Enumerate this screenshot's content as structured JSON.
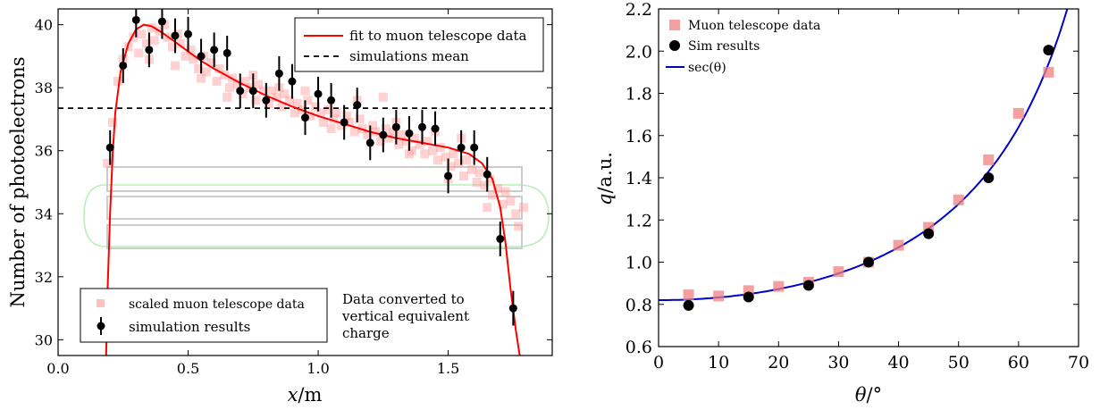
{
  "chart_data": [
    {
      "type": "scatter",
      "xlabel_var": "x",
      "xlabel_unit": "/m",
      "ylabel": "Number of photoelectrons",
      "xlim": [
        0.0,
        1.9
      ],
      "ylim": [
        29.5,
        40.5
      ],
      "xticks": [
        "0.0",
        "0.5",
        "1.0",
        "1.5"
      ],
      "xtick_values": [
        0.0,
        0.5,
        1.0,
        1.5
      ],
      "yticks": [
        "30",
        "32",
        "34",
        "36",
        "38",
        "40"
      ],
      "ytick_values": [
        30,
        32,
        34,
        36,
        38,
        40
      ],
      "grid": false,
      "legend_top": {
        "placement": "top-right",
        "entries": [
          "fit to muon telescope data",
          "simulations mean"
        ]
      },
      "legend_bottom": {
        "placement": "bottom-left",
        "entries": [
          "scaled muon telescope data",
          "simulation results"
        ]
      },
      "annotation": [
        "Data converted to",
        "vertical equivalent",
        "charge"
      ],
      "colors": {
        "fit": "#ff0000",
        "telescope": "#ff9999",
        "sim": "#000000",
        "mean": "#000000",
        "module_outline": "#c8c8c8",
        "module_glow": "#b0f0b0"
      },
      "mean": 37.35,
      "simulation": [
        {
          "x": 0.2,
          "y": 36.1,
          "err": 0.55
        },
        {
          "x": 0.25,
          "y": 38.7,
          "err": 0.55
        },
        {
          "x": 0.3,
          "y": 40.15,
          "err": 0.55
        },
        {
          "x": 0.35,
          "y": 39.2,
          "err": 0.55
        },
        {
          "x": 0.4,
          "y": 40.1,
          "err": 0.55
        },
        {
          "x": 0.45,
          "y": 39.65,
          "err": 0.55
        },
        {
          "x": 0.5,
          "y": 39.7,
          "err": 0.55
        },
        {
          "x": 0.55,
          "y": 39.0,
          "err": 0.55
        },
        {
          "x": 0.6,
          "y": 39.2,
          "err": 0.55
        },
        {
          "x": 0.65,
          "y": 39.1,
          "err": 0.55
        },
        {
          "x": 0.7,
          "y": 37.9,
          "err": 0.55
        },
        {
          "x": 0.75,
          "y": 37.9,
          "err": 0.55
        },
        {
          "x": 0.8,
          "y": 37.6,
          "err": 0.55
        },
        {
          "x": 0.85,
          "y": 38.45,
          "err": 0.55
        },
        {
          "x": 0.9,
          "y": 38.2,
          "err": 0.55
        },
        {
          "x": 0.95,
          "y": 37.05,
          "err": 0.55
        },
        {
          "x": 1.0,
          "y": 37.8,
          "err": 0.55
        },
        {
          "x": 1.05,
          "y": 37.6,
          "err": 0.55
        },
        {
          "x": 1.1,
          "y": 36.9,
          "err": 0.55
        },
        {
          "x": 1.15,
          "y": 37.45,
          "err": 0.55
        },
        {
          "x": 1.2,
          "y": 36.25,
          "err": 0.55
        },
        {
          "x": 1.25,
          "y": 36.5,
          "err": 0.55
        },
        {
          "x": 1.3,
          "y": 36.75,
          "err": 0.55
        },
        {
          "x": 1.35,
          "y": 36.55,
          "err": 0.55
        },
        {
          "x": 1.4,
          "y": 36.75,
          "err": 0.55
        },
        {
          "x": 1.45,
          "y": 36.7,
          "err": 0.55
        },
        {
          "x": 1.5,
          "y": 35.2,
          "err": 0.55
        },
        {
          "x": 1.55,
          "y": 36.1,
          "err": 0.55
        },
        {
          "x": 1.6,
          "y": 36.1,
          "err": 0.55
        },
        {
          "x": 1.65,
          "y": 35.25,
          "err": 0.55
        },
        {
          "x": 1.7,
          "y": 33.2,
          "err": 0.55
        },
        {
          "x": 1.75,
          "y": 31.0,
          "err": 0.55
        }
      ],
      "telescope": [
        [
          0.19,
          35.6
        ],
        [
          0.21,
          36.9
        ],
        [
          0.23,
          38.2
        ],
        [
          0.25,
          38.9
        ],
        [
          0.27,
          39.3
        ],
        [
          0.29,
          39.6
        ],
        [
          0.31,
          39.1
        ],
        [
          0.32,
          39.7
        ],
        [
          0.34,
          39.4
        ],
        [
          0.36,
          39.9
        ],
        [
          0.37,
          39.5
        ],
        [
          0.39,
          39.8
        ],
        [
          0.41,
          40.0
        ],
        [
          0.42,
          39.6
        ],
        [
          0.44,
          39.3
        ],
        [
          0.46,
          39.7
        ],
        [
          0.47,
          39.4
        ],
        [
          0.49,
          39.0
        ],
        [
          0.51,
          39.2
        ],
        [
          0.52,
          38.9
        ],
        [
          0.54,
          38.6
        ],
        [
          0.56,
          39.0
        ],
        [
          0.57,
          38.5
        ],
        [
          0.59,
          38.8
        ],
        [
          0.61,
          38.2
        ],
        [
          0.62,
          38.6
        ],
        [
          0.64,
          38.4
        ],
        [
          0.66,
          38.0
        ],
        [
          0.67,
          38.3
        ],
        [
          0.69,
          38.1
        ],
        [
          0.71,
          37.8
        ],
        [
          0.72,
          38.2
        ],
        [
          0.74,
          38.0
        ],
        [
          0.76,
          37.6
        ],
        [
          0.77,
          38.1
        ],
        [
          0.79,
          37.9
        ],
        [
          0.81,
          37.5
        ],
        [
          0.82,
          37.9
        ],
        [
          0.84,
          37.7
        ],
        [
          0.86,
          37.4
        ],
        [
          0.87,
          37.8
        ],
        [
          0.89,
          37.6
        ],
        [
          0.91,
          37.2
        ],
        [
          0.92,
          37.5
        ],
        [
          0.94,
          37.3
        ],
        [
          0.96,
          37.6
        ],
        [
          0.97,
          37.1
        ],
        [
          0.99,
          37.4
        ],
        [
          1.01,
          37.2
        ],
        [
          1.02,
          36.9
        ],
        [
          1.04,
          37.3
        ],
        [
          1.06,
          37.0
        ],
        [
          1.07,
          37.2
        ],
        [
          1.09,
          36.8
        ],
        [
          1.11,
          37.1
        ],
        [
          1.12,
          36.9
        ],
        [
          1.14,
          36.6
        ],
        [
          1.16,
          37.0
        ],
        [
          1.17,
          36.7
        ],
        [
          1.19,
          36.5
        ],
        [
          1.21,
          36.8
        ],
        [
          1.22,
          36.6
        ],
        [
          1.24,
          36.3
        ],
        [
          1.26,
          36.7
        ],
        [
          1.27,
          36.4
        ],
        [
          1.29,
          36.6
        ],
        [
          1.31,
          36.2
        ],
        [
          1.32,
          36.5
        ],
        [
          1.34,
          36.3
        ],
        [
          1.36,
          36.0
        ],
        [
          1.37,
          36.4
        ],
        [
          1.39,
          36.2
        ],
        [
          1.41,
          35.9
        ],
        [
          1.42,
          36.3
        ],
        [
          1.44,
          36.0
        ],
        [
          1.46,
          35.7
        ],
        [
          1.47,
          36.1
        ],
        [
          1.49,
          35.8
        ],
        [
          1.51,
          35.5
        ],
        [
          1.52,
          35.9
        ],
        [
          1.54,
          35.6
        ],
        [
          1.56,
          35.2
        ],
        [
          1.57,
          35.7
        ],
        [
          1.59,
          35.4
        ],
        [
          1.61,
          35.0
        ],
        [
          1.62,
          35.3
        ],
        [
          1.64,
          34.9
        ],
        [
          1.66,
          35.1
        ],
        [
          1.67,
          34.6
        ],
        [
          1.69,
          34.8
        ],
        [
          1.71,
          34.3
        ],
        [
          1.72,
          34.7
        ],
        [
          1.74,
          34.4
        ],
        [
          1.76,
          34.0
        ],
        [
          1.77,
          33.6
        ],
        [
          1.79,
          34.2
        ],
        [
          0.55,
          38.3
        ],
        [
          0.65,
          37.7
        ],
        [
          0.95,
          37.9
        ],
        [
          1.15,
          37.6
        ],
        [
          1.25,
          37.7
        ],
        [
          1.35,
          35.9
        ],
        [
          1.45,
          36.6
        ],
        [
          1.55,
          36.4
        ],
        [
          0.45,
          38.7
        ],
        [
          0.75,
          38.4
        ],
        [
          1.05,
          36.7
        ],
        [
          1.65,
          34.2
        ],
        [
          1.5,
          35.1
        ],
        [
          0.35,
          38.9
        ],
        [
          0.85,
          38.0
        ],
        [
          1.3,
          36.9
        ]
      ],
      "fit_curve": [
        [
          0.185,
          29.5
        ],
        [
          0.19,
          31.5
        ],
        [
          0.2,
          34.0
        ],
        [
          0.21,
          35.9
        ],
        [
          0.22,
          37.2
        ],
        [
          0.24,
          38.5
        ],
        [
          0.27,
          39.4
        ],
        [
          0.3,
          39.85
        ],
        [
          0.33,
          40.0
        ],
        [
          0.36,
          39.95
        ],
        [
          0.4,
          39.75
        ],
        [
          0.45,
          39.45
        ],
        [
          0.5,
          39.15
        ],
        [
          0.55,
          38.85
        ],
        [
          0.6,
          38.6
        ],
        [
          0.7,
          38.15
        ],
        [
          0.8,
          37.75
        ],
        [
          0.9,
          37.4
        ],
        [
          1.0,
          37.1
        ],
        [
          1.1,
          36.85
        ],
        [
          1.2,
          36.6
        ],
        [
          1.3,
          36.4
        ],
        [
          1.4,
          36.25
        ],
        [
          1.5,
          36.1
        ],
        [
          1.58,
          35.9
        ],
        [
          1.63,
          35.6
        ],
        [
          1.67,
          35.1
        ],
        [
          1.7,
          34.2
        ],
        [
          1.72,
          33.1
        ],
        [
          1.74,
          31.6
        ],
        [
          1.76,
          30.3
        ],
        [
          1.775,
          29.5
        ]
      ]
    },
    {
      "type": "scatter",
      "xlabel_var": "θ",
      "xlabel_unit": "/°",
      "ylabel_var": "q",
      "ylabel_unit": "/a.u.",
      "xlim": [
        0,
        70
      ],
      "ylim": [
        0.6,
        2.2
      ],
      "xticks": [
        "0",
        "10",
        "20",
        "30",
        "40",
        "50",
        "60",
        "70"
      ],
      "xtick_values": [
        0,
        10,
        20,
        30,
        40,
        50,
        60,
        70
      ],
      "yticks": [
        "0.6",
        "0.8",
        "1.0",
        "1.2",
        "1.4",
        "1.6",
        "1.8",
        "2.0",
        "2.2"
      ],
      "ytick_values": [
        0.6,
        0.8,
        1.0,
        1.2,
        1.4,
        1.6,
        1.8,
        2.0,
        2.2
      ],
      "grid": false,
      "legend": {
        "placement": "top-left",
        "entries": [
          "Muon telescope data",
          "Sim results",
          "sec(θ)"
        ]
      },
      "colors": {
        "telescope": "#f08080",
        "sim": "#000000",
        "curve": "#0000cc"
      },
      "telescope": [
        {
          "x": 5,
          "y": 0.845
        },
        {
          "x": 10,
          "y": 0.84
        },
        {
          "x": 15,
          "y": 0.865
        },
        {
          "x": 20,
          "y": 0.885
        },
        {
          "x": 25,
          "y": 0.905
        },
        {
          "x": 30,
          "y": 0.955
        },
        {
          "x": 35,
          "y": 1.0
        },
        {
          "x": 40,
          "y": 1.08
        },
        {
          "x": 45,
          "y": 1.165
        },
        {
          "x": 50,
          "y": 1.295
        },
        {
          "x": 55,
          "y": 1.485
        },
        {
          "x": 60,
          "y": 1.705
        },
        {
          "x": 65,
          "y": 1.9
        }
      ],
      "simulation": [
        {
          "x": 5,
          "y": 0.795
        },
        {
          "x": 15,
          "y": 0.835
        },
        {
          "x": 25,
          "y": 0.89
        },
        {
          "x": 35,
          "y": 1.0
        },
        {
          "x": 45,
          "y": 1.135
        },
        {
          "x": 55,
          "y": 1.4
        },
        {
          "x": 65,
          "y": 2.005
        }
      ],
      "curve_scale": 0.82
    }
  ]
}
